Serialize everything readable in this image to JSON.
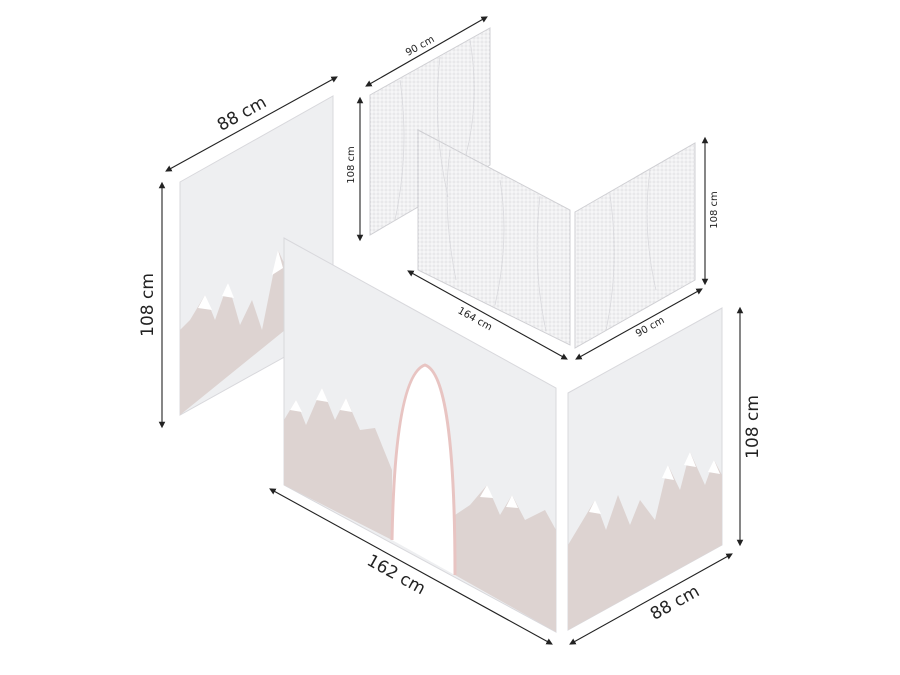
{
  "dimensions": [
    {
      "label": "88 cm"
    },
    {
      "label": "108 cm"
    },
    {
      "label": "90 cm"
    },
    {
      "label": "108 cm"
    },
    {
      "label": "108 cm"
    },
    {
      "label": "164 cm"
    },
    {
      "label": "90 cm"
    },
    {
      "label": "162 cm"
    },
    {
      "label": "88 cm"
    },
    {
      "label": "108 cm"
    }
  ]
}
